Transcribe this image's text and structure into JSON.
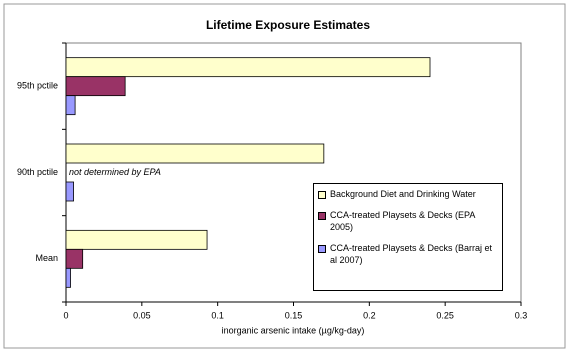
{
  "chart_data": {
    "type": "hbar",
    "title": "Lifetime Exposure Estimates",
    "x_label": "inorganic arsenic intake (µg/kg-day)",
    "annotation": "not determined by EPA",
    "categories": [
      "95th pctile",
      "90th pctile",
      "Mean"
    ],
    "series": [
      {
        "name": "Background Diet and Drinking Water",
        "color": "#ffffcc",
        "values": [
          0.24,
          0.17,
          0.093
        ]
      },
      {
        "name": "CCA-treated Playsets & Decks (EPA 2005)",
        "color": "#993366",
        "values": [
          0.039,
          null,
          0.011
        ]
      },
      {
        "name": "CCA-treated Playsets & Decks (Barraj et al 2007)",
        "color": "#9999ff",
        "values": [
          0.006,
          0.005,
          0.003
        ]
      }
    ],
    "xlim": [
      0,
      0.3
    ],
    "xticks": [
      0,
      0.05,
      0.1,
      0.15,
      0.2,
      0.25,
      0.3
    ]
  }
}
